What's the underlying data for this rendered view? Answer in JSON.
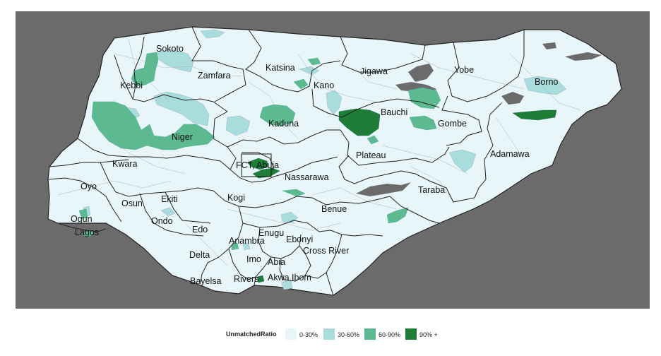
{
  "map": {
    "legend": {
      "title": "UnmatchedRatio",
      "items": [
        {
          "label": "0-30%",
          "color": "#e9f6f9"
        },
        {
          "label": "30-60%",
          "color": "#a9dcdc"
        },
        {
          "label": "60-90%",
          "color": "#5db990"
        },
        {
          "label": "90% +",
          "color": "#1e7d37"
        }
      ]
    },
    "colors": {
      "panel_background": "#6b6b6b",
      "missing_data": "#6b6b6b",
      "border": "#222222"
    },
    "states": [
      {
        "name": "Sokoto"
      },
      {
        "name": "Zamfara"
      },
      {
        "name": "Katsina"
      },
      {
        "name": "Jigawa"
      },
      {
        "name": "Yobe"
      },
      {
        "name": "Borno"
      },
      {
        "name": "Kebbi"
      },
      {
        "name": "Kano"
      },
      {
        "name": "Bauchi"
      },
      {
        "name": "Gombe"
      },
      {
        "name": "Niger"
      },
      {
        "name": "Kaduna"
      },
      {
        "name": "Adamawa"
      },
      {
        "name": "Plateau"
      },
      {
        "name": "Kwara"
      },
      {
        "name": "FCT, Abuja"
      },
      {
        "name": "Nassarawa"
      },
      {
        "name": "Oyo"
      },
      {
        "name": "Taraba"
      },
      {
        "name": "Ekiti"
      },
      {
        "name": "Osun"
      },
      {
        "name": "Kogi"
      },
      {
        "name": "Benue"
      },
      {
        "name": "Ogun"
      },
      {
        "name": "Ondo"
      },
      {
        "name": "Lagos"
      },
      {
        "name": "Edo"
      },
      {
        "name": "Enugu"
      },
      {
        "name": "Anambra"
      },
      {
        "name": "Ebonyi"
      },
      {
        "name": "Cross River"
      },
      {
        "name": "Delta"
      },
      {
        "name": "Imo"
      },
      {
        "name": "Abia"
      },
      {
        "name": "Bayelsa"
      },
      {
        "name": "Rivers"
      },
      {
        "name": "Akwa Ibom"
      }
    ]
  }
}
